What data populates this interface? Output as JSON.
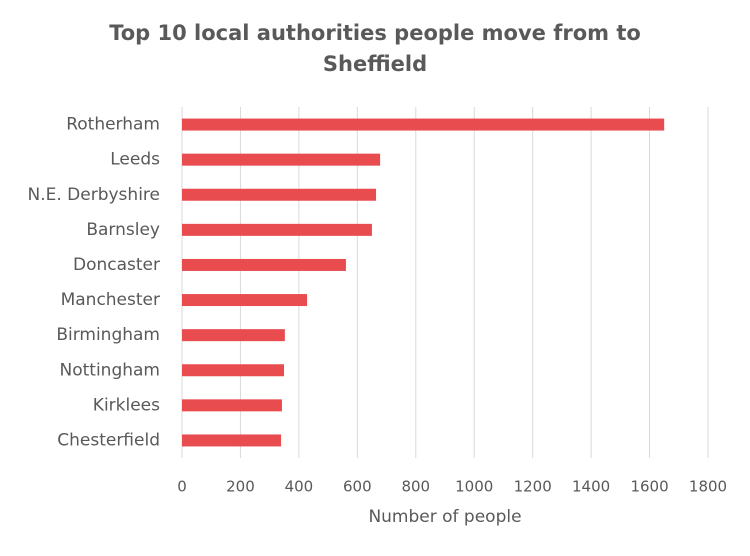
{
  "chart_data": {
    "type": "bar",
    "orientation": "horizontal",
    "title": "Top 10 local authorities people move from to Sheffield",
    "x_label": "Number of people",
    "categories": [
      "Rotherham",
      "Leeds",
      "N.E. Derbyshire",
      "Barnsley",
      "Doncaster",
      "Manchester",
      "Birmingham",
      "Nottingham",
      "Kirklees",
      "Chesterfield"
    ],
    "values": [
      1650,
      678,
      664,
      650,
      561,
      428,
      352,
      349,
      342,
      339
    ],
    "color": "#e84c4f",
    "xlim": [
      0,
      1800
    ],
    "xticks": [
      0,
      200,
      400,
      600,
      800,
      1000,
      1200,
      1400,
      1600,
      1800
    ],
    "grid": true
  }
}
